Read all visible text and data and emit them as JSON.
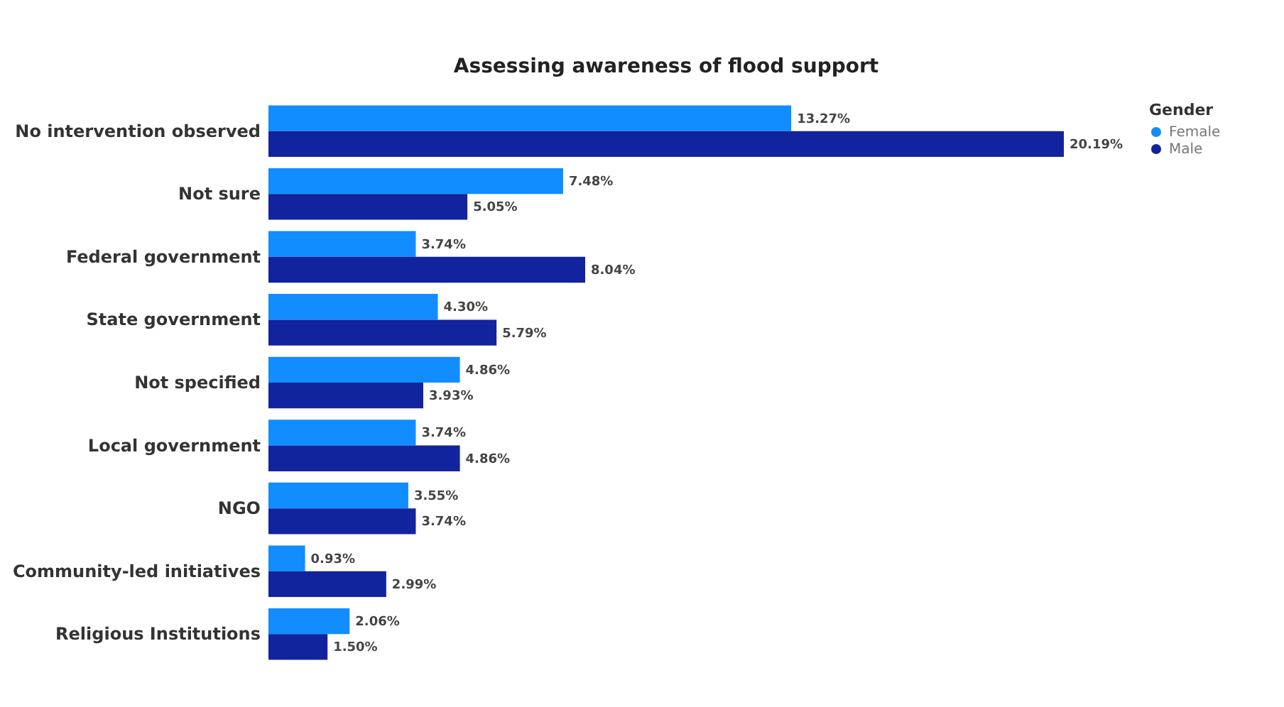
{
  "chart_data": {
    "type": "bar",
    "orientation": "horizontal",
    "title": "Assessing awareness of flood support",
    "legend_title": "Gender",
    "legend": "right",
    "categories": [
      "No intervention observed",
      "Not sure",
      "Federal government",
      "State government",
      "Not specified",
      "Local government",
      "NGO",
      "Community-led initiatives",
      "Religious Institutions"
    ],
    "series": [
      {
        "name": "Female",
        "color": "#118dff",
        "values": [
          13.27,
          7.48,
          3.74,
          4.3,
          4.86,
          3.74,
          3.55,
          0.93,
          2.06
        ],
        "value_labels": [
          "13.27%",
          "7.48%",
          "3.74%",
          "4.30%",
          "4.86%",
          "3.74%",
          "3.55%",
          "0.93%",
          "2.06%"
        ]
      },
      {
        "name": "Male",
        "color": "#12239e",
        "values": [
          20.19,
          5.05,
          8.04,
          5.79,
          3.93,
          4.86,
          3.74,
          2.99,
          1.5
        ],
        "value_labels": [
          "20.19%",
          "5.05%",
          "8.04%",
          "5.79%",
          "3.93%",
          "4.86%",
          "3.74%",
          "2.99%",
          "1.50%"
        ]
      }
    ]
  }
}
